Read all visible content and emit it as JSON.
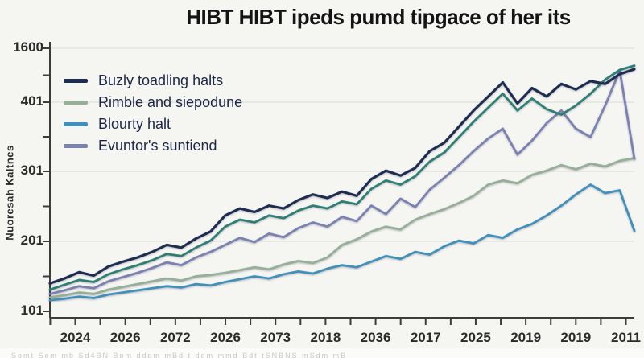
{
  "title": "HIBT HIBT ipeds pumd tipgace of her its",
  "y_axis": {
    "title": "Nuoresah Kaltnes",
    "tick_labels": [
      "1600",
      "401",
      "301",
      "201",
      "101"
    ]
  },
  "x_axis": {
    "tick_labels": [
      "2024",
      "2026",
      "2072",
      "2026",
      "2073",
      "2018",
      "2036",
      "2017",
      "2025",
      "2019",
      "2019",
      "2011"
    ]
  },
  "legend": {
    "position": "upper-left",
    "items": [
      {
        "label": "Buzly toadling halts",
        "color": "#1d2c50"
      },
      {
        "label": "Rimble and siepodune",
        "color": "#96b098"
      },
      {
        "label": "Blourty halt",
        "color": "#4190ba"
      },
      {
        "label": "Evuntor's suntiend",
        "color": "#7b81b0"
      }
    ]
  },
  "footnote": "Somt Som  mb Sd4BN Bpm   ddpm   mBd t ddm    mmd   Bdt tSNBNS   mSdm    mB",
  "chart_data": {
    "type": "line",
    "title": "HIBT HIBT ipeds pumd tipgace of her its",
    "xlabel": "",
    "ylabel": "Nuoresah Kaltnes",
    "x_tick_labels": [
      "2024",
      "2026",
      "2072",
      "2026",
      "2073",
      "2018",
      "2036",
      "2017",
      "2025",
      "2019",
      "2019",
      "2011"
    ],
    "y_tick_labels_top_to_bottom": [
      "1600",
      "401",
      "301",
      "201",
      "101"
    ],
    "ylim": [
      95,
      505
    ],
    "grid": "horizontal-faint",
    "legend_position": "upper-left",
    "n_points": 41,
    "x_spacing": "41 evenly spaced samples across full x-range, x normalized 0..1",
    "series": [
      {
        "name": "Rimble and siepodune",
        "color": "#96b098",
        "values": [
          121,
          124,
          128,
          126,
          132,
          136,
          140,
          144,
          148,
          145,
          151,
          153,
          156,
          160,
          164,
          161,
          168,
          173,
          170,
          178,
          196,
          204,
          215,
          222,
          218,
          232,
          240,
          247,
          256,
          266,
          282,
          288,
          284,
          296,
          302,
          310,
          304,
          312,
          308,
          316,
          320
        ]
      },
      {
        "name": "Blourty halt",
        "color": "#4190ba",
        "values": [
          117,
          119,
          122,
          120,
          125,
          128,
          131,
          134,
          137,
          135,
          140,
          138,
          143,
          147,
          151,
          148,
          154,
          158,
          155,
          162,
          167,
          164,
          172,
          180,
          176,
          186,
          182,
          194,
          202,
          198,
          210,
          206,
          218,
          226,
          238,
          252,
          268,
          282,
          270,
          274,
          216
        ]
      },
      {
        "name": "Evuntor's suntiend",
        "color": "#7b81b0",
        "values": [
          126,
          131,
          137,
          134,
          144,
          150,
          156,
          163,
          171,
          167,
          178,
          186,
          196,
          206,
          200,
          212,
          207,
          220,
          228,
          222,
          236,
          230,
          252,
          240,
          262,
          250,
          275,
          292,
          310,
          330,
          348,
          362,
          325,
          345,
          370,
          388,
          362,
          350,
          395,
          445,
          319
        ]
      },
      {
        "name": "unlabeled-teal-series",
        "color": "#2d7f74",
        "values": [
          132,
          139,
          146,
          143,
          154,
          161,
          167,
          174,
          183,
          180,
          192,
          202,
          222,
          232,
          228,
          238,
          234,
          245,
          252,
          248,
          258,
          254,
          276,
          288,
          282,
          294,
          315,
          328,
          350,
          372,
          392,
          412,
          388,
          405,
          390,
          382,
          395,
          412,
          432,
          446,
          452
        ]
      },
      {
        "name": "Buzly toadling halts",
        "color": "#1d2c50",
        "values": [
          141,
          148,
          157,
          152,
          165,
          172,
          178,
          186,
          196,
          192,
          205,
          215,
          238,
          248,
          243,
          252,
          248,
          260,
          268,
          263,
          272,
          266,
          290,
          302,
          295,
          306,
          330,
          342,
          365,
          388,
          408,
          428,
          398,
          420,
          408,
          426,
          418,
          430,
          426,
          440,
          447
        ]
      }
    ]
  }
}
